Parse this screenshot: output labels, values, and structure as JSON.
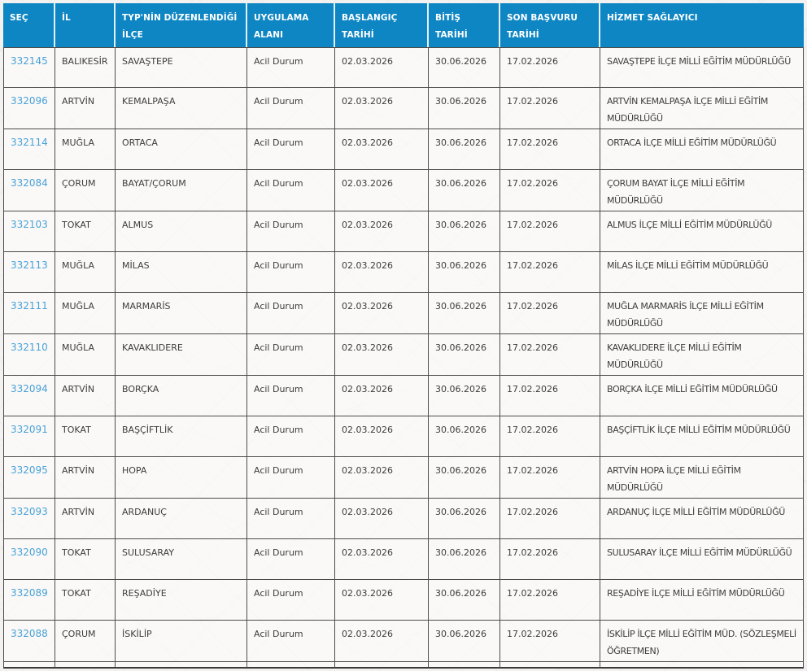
{
  "table": {
    "columns": [
      {
        "key": "sec",
        "label": "SEÇ"
      },
      {
        "key": "il",
        "label": "İL"
      },
      {
        "key": "ilce",
        "label": "TYP'NİN DÜZENLENDİĞİ\nİLÇE"
      },
      {
        "key": "alan",
        "label": "UYGULAMA\nALANI"
      },
      {
        "key": "baslangic",
        "label": "BAŞLANGIÇ\nTARİHİ"
      },
      {
        "key": "bitis",
        "label": "BİTİŞ\nTARİHİ"
      },
      {
        "key": "son",
        "label": "SON BAŞVURU\nTARİHİ"
      },
      {
        "key": "saglayici",
        "label": "HİZMET SAĞLAYICI"
      }
    ],
    "rows": [
      {
        "sec": "332145",
        "il": "BALIKESİR",
        "ilce": "SAVAŞTEPE",
        "alan": "Acil Durum",
        "baslangic": "02.03.2026",
        "bitis": "30.06.2026",
        "son": "17.02.2026",
        "saglayici": "SAVAŞTEPE İLÇE MİLLİ EĞİTİM MÜDÜRLÜĞÜ"
      },
      {
        "sec": "332096",
        "il": "ARTVİN",
        "ilce": "KEMALPAŞA",
        "alan": "Acil Durum",
        "baslangic": "02.03.2026",
        "bitis": "30.06.2026",
        "son": "17.02.2026",
        "saglayici": "ARTVİN KEMALPAŞA İLÇE MİLLİ EĞİTİM MÜDÜRLÜĞÜ"
      },
      {
        "sec": "332114",
        "il": "MUĞLA",
        "ilce": "ORTACA",
        "alan": "Acil Durum",
        "baslangic": "02.03.2026",
        "bitis": "30.06.2026",
        "son": "17.02.2026",
        "saglayici": "ORTACA İLÇE MİLLİ EĞİTİM MÜDÜRLÜĞÜ"
      },
      {
        "sec": "332084",
        "il": "ÇORUM",
        "ilce": "BAYAT/ÇORUM",
        "alan": "Acil Durum",
        "baslangic": "02.03.2026",
        "bitis": "30.06.2026",
        "son": "17.02.2026",
        "saglayici": "ÇORUM BAYAT İLÇE MİLLİ EĞİTİM MÜDÜRLÜĞÜ"
      },
      {
        "sec": "332103",
        "il": "TOKAT",
        "ilce": "ALMUS",
        "alan": "Acil Durum",
        "baslangic": "02.03.2026",
        "bitis": "30.06.2026",
        "son": "17.02.2026",
        "saglayici": "ALMUS İLÇE MİLLİ EĞİTİM MÜDÜRLÜĞÜ"
      },
      {
        "sec": "332113",
        "il": "MUĞLA",
        "ilce": "MİLAS",
        "alan": "Acil Durum",
        "baslangic": "02.03.2026",
        "bitis": "30.06.2026",
        "son": "17.02.2026",
        "saglayici": "MİLAS İLÇE MİLLİ EĞİTİM MÜDÜRLÜĞÜ"
      },
      {
        "sec": "332111",
        "il": "MUĞLA",
        "ilce": "MARMARİS",
        "alan": "Acil Durum",
        "baslangic": "02.03.2026",
        "bitis": "30.06.2026",
        "son": "17.02.2026",
        "saglayici": "MUĞLA MARMARİS İLÇE MİLLİ EĞİTİM MÜDÜRLÜĞÜ"
      },
      {
        "sec": "332110",
        "il": "MUĞLA",
        "ilce": "KAVAKLIDERE",
        "alan": "Acil Durum",
        "baslangic": "02.03.2026",
        "bitis": "30.06.2026",
        "son": "17.02.2026",
        "saglayici": "KAVAKLIDERE İLÇE MİLLİ EĞİTİM MÜDÜRLÜĞÜ"
      },
      {
        "sec": "332094",
        "il": "ARTVİN",
        "ilce": "BORÇKA",
        "alan": "Acil Durum",
        "baslangic": "02.03.2026",
        "bitis": "30.06.2026",
        "son": "17.02.2026",
        "saglayici": "BORÇKA İLÇE MİLLİ EĞİTİM MÜDÜRLÜĞÜ"
      },
      {
        "sec": "332091",
        "il": "TOKAT",
        "ilce": "BAŞÇİFTLİK",
        "alan": "Acil Durum",
        "baslangic": "02.03.2026",
        "bitis": "30.06.2026",
        "son": "17.02.2026",
        "saglayici": "BAŞÇİFTLİK İLÇE MİLLİ EĞİTİM MÜDÜRLÜĞÜ"
      },
      {
        "sec": "332095",
        "il": "ARTVİN",
        "ilce": "HOPA",
        "alan": "Acil Durum",
        "baslangic": "02.03.2026",
        "bitis": "30.06.2026",
        "son": "17.02.2026",
        "saglayici": "ARTVİN HOPA İLÇE MİLLİ EĞİTİM MÜDÜRLÜĞÜ"
      },
      {
        "sec": "332093",
        "il": "ARTVİN",
        "ilce": "ARDANUÇ",
        "alan": "Acil Durum",
        "baslangic": "02.03.2026",
        "bitis": "30.06.2026",
        "son": "17.02.2026",
        "saglayici": "ARDANUÇ İLÇE MİLLİ EĞİTİM MÜDÜRLÜĞÜ"
      },
      {
        "sec": "332090",
        "il": "TOKAT",
        "ilce": "SULUSARAY",
        "alan": "Acil Durum",
        "baslangic": "02.03.2026",
        "bitis": "30.06.2026",
        "son": "17.02.2026",
        "saglayici": "SULUSARAY İLÇE MİLLİ EĞİTİM MÜDÜRLÜĞÜ"
      },
      {
        "sec": "332089",
        "il": "TOKAT",
        "ilce": "REŞADİYE",
        "alan": "Acil Durum",
        "baslangic": "02.03.2026",
        "bitis": "30.06.2026",
        "son": "17.02.2026",
        "saglayici": "REŞADİYE İLÇE MİLLİ EĞİTİM MÜDÜRLÜĞÜ"
      },
      {
        "sec": "332088",
        "il": "ÇORUM",
        "ilce": "İSKİLİP",
        "alan": "Acil Durum",
        "baslangic": "02.03.2026",
        "bitis": "30.06.2026",
        "son": "17.02.2026",
        "saglayici": "İSKİLİP İLÇE MİLLİ EĞİTİM MÜD. (SÖZLEŞMELİ ÖĞRETMEN)"
      }
    ]
  },
  "colors": {
    "header_bg": "#0e86c4",
    "header_text": "#ffffff",
    "link": "#49a1d8",
    "cell_text": "#3d3d3d",
    "grid_border": "#4c4c4c",
    "page_bg": "#f3f2f0"
  }
}
